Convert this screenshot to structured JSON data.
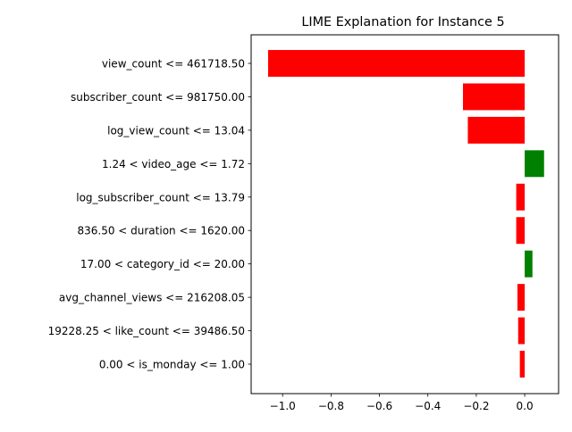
{
  "chart_data": {
    "type": "bar",
    "orientation": "horizontal",
    "title": "LIME Explanation for Instance 5",
    "xlabel": "",
    "ylabel": "",
    "xlim": [
      -1.13,
      0.14
    ],
    "xticks": [
      -1.0,
      -0.8,
      -0.6,
      -0.4,
      -0.2,
      0.0
    ],
    "xtick_labels": [
      "−1.0",
      "−0.8",
      "−0.6",
      "−0.4",
      "−0.2",
      "0.0"
    ],
    "grid": false,
    "categories": [
      "view_count <= 461718.50",
      "subscriber_count <= 981750.00",
      "log_view_count <= 13.04",
      "1.24 < video_age <= 1.72",
      "log_subscriber_count <= 13.79",
      "836.50 < duration <= 1620.00",
      "17.00 < category_id <= 20.00",
      "avg_channel_views <= 216208.05",
      "19228.25 < like_count <= 39486.50",
      "0.00 < is_monday <= 1.00"
    ],
    "values": [
      -1.06,
      -0.255,
      -0.235,
      0.08,
      -0.035,
      -0.035,
      0.032,
      -0.03,
      -0.027,
      -0.02
    ],
    "colors": {
      "negative": "#ff0000",
      "positive": "#008000"
    }
  }
}
